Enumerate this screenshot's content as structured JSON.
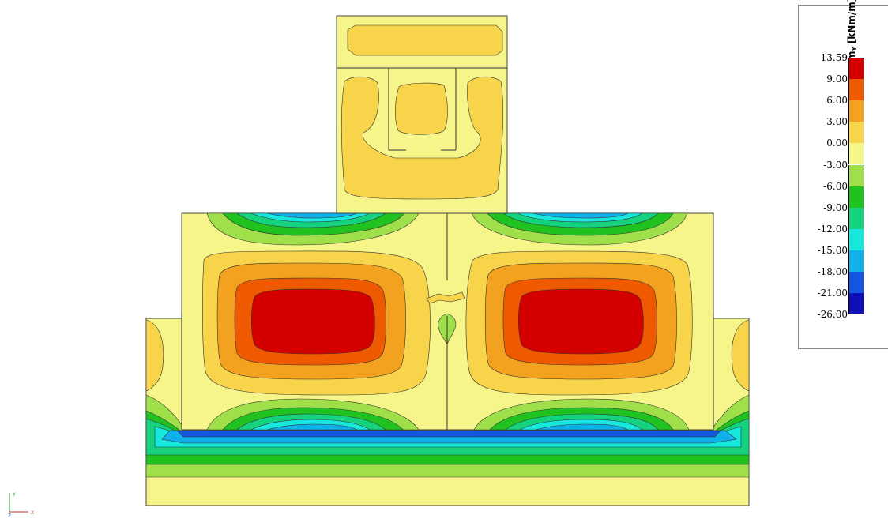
{
  "legend": {
    "unit_label": "mᵧ [kNm/m]",
    "levels": [
      "13.59",
      "9.00",
      "6.00",
      "3.00",
      "0.00",
      "-3.00",
      "-6.00",
      "-9.00",
      "-12.00",
      "-15.00",
      "-18.00",
      "-21.00",
      "-26.00"
    ],
    "colors": [
      "#d40000",
      "#ef5a00",
      "#f2a21e",
      "#f7d44a",
      "#f6f58a",
      "#9fdf4a",
      "#1fc21f",
      "#14d27d",
      "#16e8de",
      "#10b0ea",
      "#1456e0",
      "#1010b8"
    ]
  },
  "axes": {
    "y": "Y",
    "x": "X",
    "z": "Z"
  }
}
